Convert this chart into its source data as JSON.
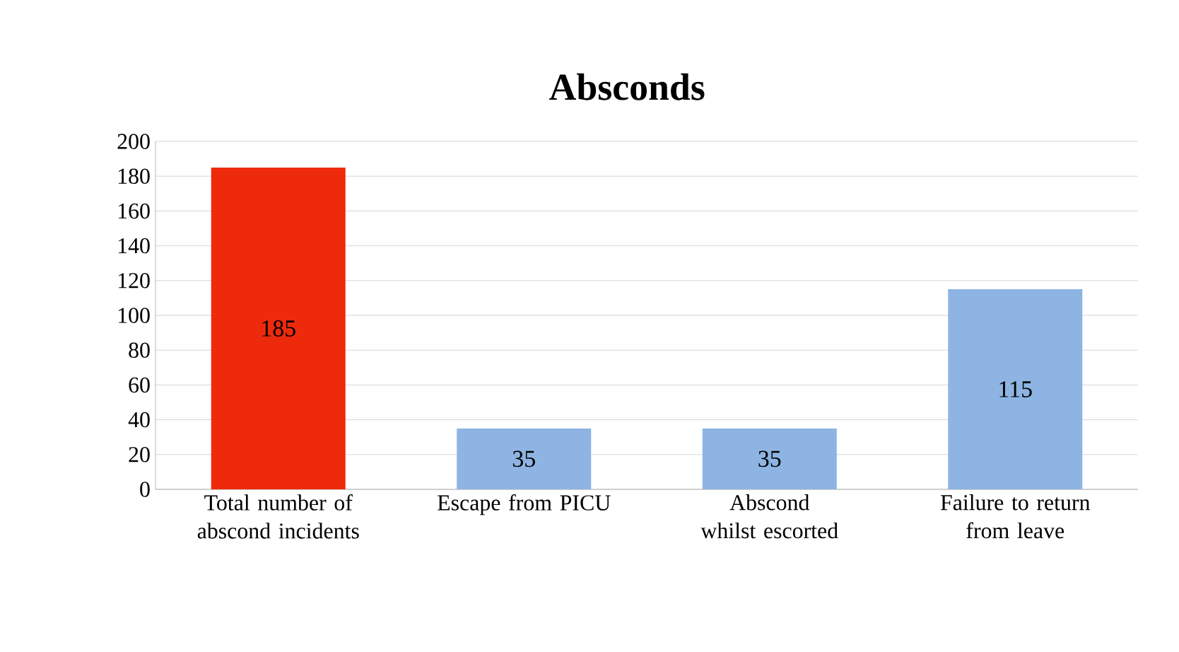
{
  "chart_data": {
    "type": "bar",
    "title": "Absconds",
    "categories": [
      "Total number of abscond incidents",
      "Escape from PICU",
      "Abscond whilst escorted",
      "Failure to return from leave"
    ],
    "values": [
      185,
      35,
      35,
      115
    ],
    "value_labels": [
      "185",
      "35",
      "35",
      "115"
    ],
    "colors": [
      "#ee2a0c",
      "#8db4e2",
      "#8db4e2",
      "#8db4e2"
    ],
    "ylim": [
      0,
      200
    ],
    "yticks": [
      0,
      20,
      40,
      60,
      80,
      100,
      120,
      140,
      160,
      180,
      200
    ],
    "grid": "y"
  }
}
